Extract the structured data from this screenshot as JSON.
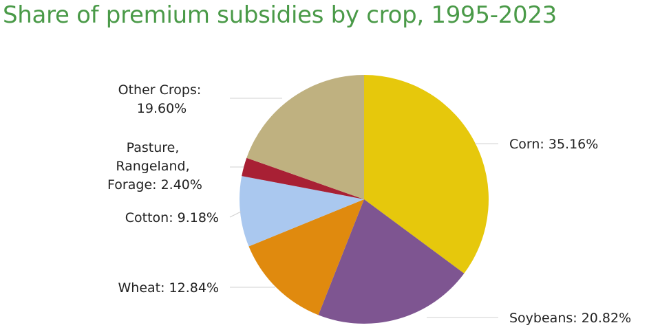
{
  "title": "Share of premium subsidies by crop, 1995-2023",
  "chart_data": {
    "type": "pie",
    "title": "Share of premium subsidies by crop, 1995-2023",
    "start_angle_deg": 0,
    "direction": "clockwise",
    "slices": [
      {
        "name": "Corn",
        "value": 35.16,
        "label": "Corn: 35.16%",
        "color": "#e6c80c"
      },
      {
        "name": "Soybeans",
        "value": 20.82,
        "label": "Soybeans: 20.82%",
        "color": "#7e5591"
      },
      {
        "name": "Wheat",
        "value": 12.84,
        "label": "Wheat: 12.84%",
        "color": "#e08a0e"
      },
      {
        "name": "Cotton",
        "value": 9.18,
        "label": "Cotton: 9.18%",
        "color": "#aac8ef"
      },
      {
        "name": "Pasture, Rangeland, Forage",
        "value": 2.4,
        "label": "Pasture, Rangeland, Forage: 2.40%",
        "color": "#a82034"
      },
      {
        "name": "Other Crops",
        "value": 19.6,
        "label": "Other Crops: 19.60%",
        "color": "#bfb180"
      }
    ]
  },
  "labels": {
    "corn": [
      "Corn: 35.16%"
    ],
    "soybeans": [
      "Soybeans: 20.82%"
    ],
    "wheat": [
      "Wheat: 12.84%"
    ],
    "cotton": [
      "Cotton: 9.18%"
    ],
    "pasture": [
      "Pasture,",
      "Rangeland,",
      "Forage: 2.40%"
    ],
    "other": [
      "Other Crops:",
      "19.60%"
    ]
  }
}
